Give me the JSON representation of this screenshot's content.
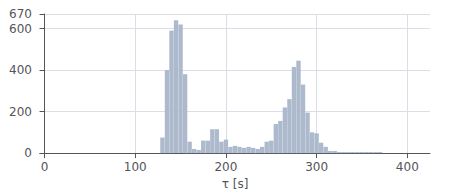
{
  "chart_data": {
    "type": "bar",
    "xlabel": "τ [s]",
    "x": [
      130,
      135,
      140,
      145,
      150,
      155,
      160,
      165,
      170,
      175,
      180,
      185,
      190,
      195,
      200,
      205,
      210,
      215,
      220,
      225,
      230,
      235,
      240,
      245,
      250,
      255,
      260,
      265,
      270,
      275,
      280,
      285,
      290,
      295,
      300,
      305,
      310,
      315,
      320,
      325,
      330,
      335,
      340,
      345,
      350,
      355,
      360,
      365,
      370
    ],
    "values": [
      75,
      400,
      590,
      640,
      620,
      380,
      55,
      20,
      15,
      60,
      60,
      115,
      115,
      55,
      65,
      30,
      35,
      30,
      25,
      30,
      25,
      20,
      30,
      55,
      60,
      140,
      155,
      220,
      260,
      415,
      445,
      330,
      195,
      100,
      95,
      50,
      30,
      10,
      10,
      5,
      5,
      5,
      5,
      5,
      5,
      5,
      5,
      5,
      5
    ],
    "color": "#adb9cc",
    "xlim": [
      -5,
      425
    ],
    "xticks": [
      0,
      100,
      200,
      300,
      400
    ],
    "ylim": [
      0,
      670
    ],
    "yticks": [
      0,
      200,
      400,
      600
    ],
    "grid": true
  }
}
